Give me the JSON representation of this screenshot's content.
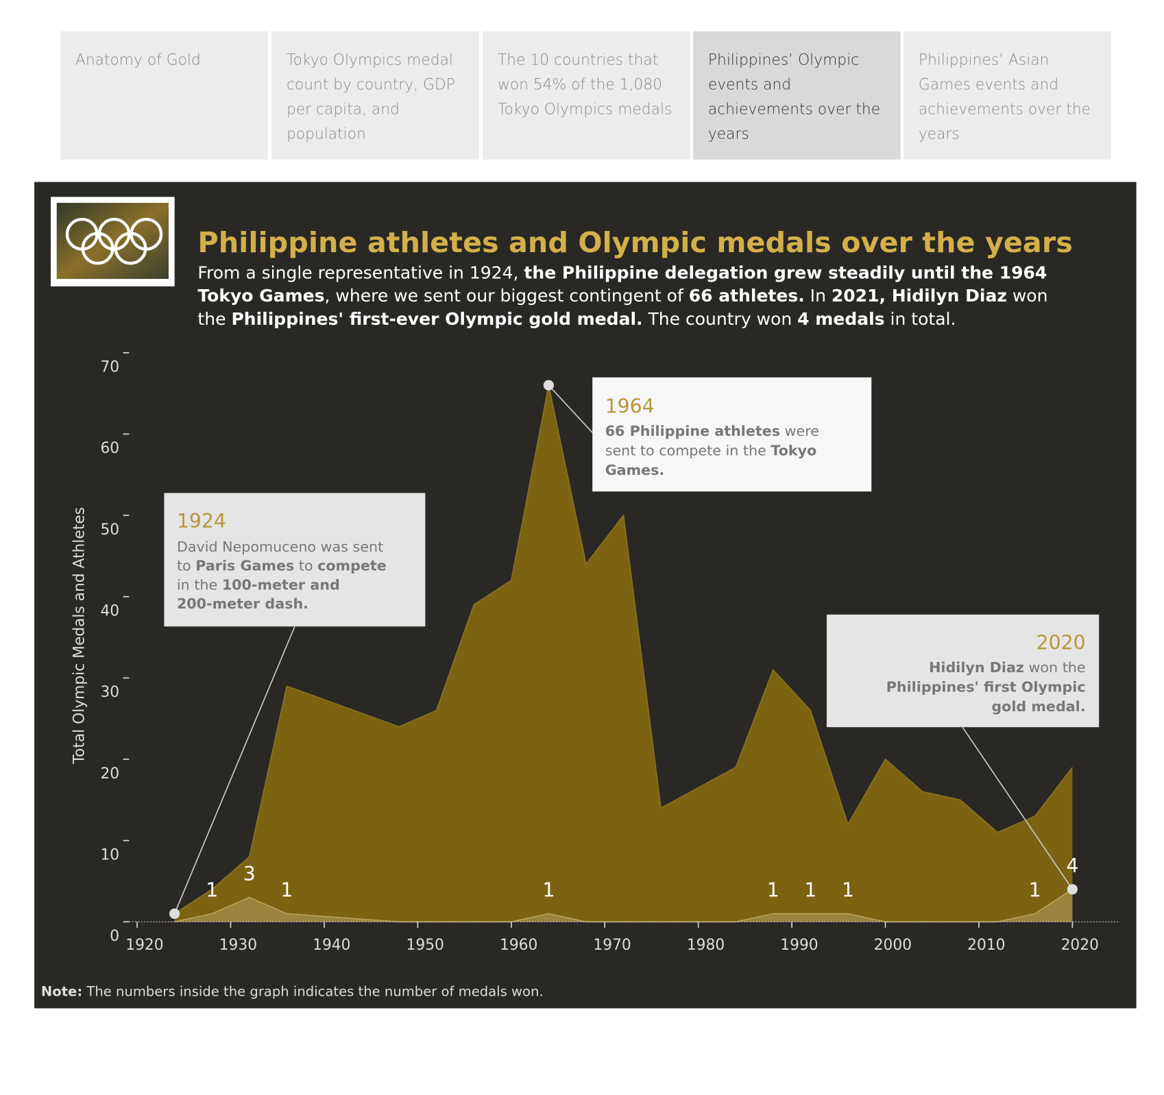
{
  "tabs": [
    "Anatomy of Gold",
    "Tokyo Olympics medal count by country, GDP per capita, and population",
    "The 10 countries that won 54% of the 1,080 Tokyo Olympics medals",
    "Philippines’ Olympic events and achievements over the years",
    "Philippines’ Asian Games events and achievements over the years"
  ],
  "active_tab": 3,
  "chart_data": {
    "type": "area",
    "title": "Philippine athletes and Olympic medals over the years",
    "subtitle": [
      [
        "From a single representative in 1924, ",
        "the Philippine delegation grew steadily until the 1964"
      ],
      [
        "Tokyo Games",
        ", where we sent our biggest contingent of ",
        "66 athletes.",
        " In ",
        "2021, Hidilyn Diaz",
        " won"
      ],
      [
        "the ",
        "Philippines' first-ever Olympic gold medal.",
        " The country won ",
        "4 medals",
        " in total."
      ]
    ],
    "y_label": "Total Olympic Medals and Athletes",
    "x": [
      1924,
      1928,
      1932,
      1936,
      1948,
      1952,
      1956,
      1960,
      1964,
      1968,
      1972,
      1976,
      1984,
      1988,
      1992,
      1996,
      2000,
      2004,
      2008,
      2012,
      2016,
      2020
    ],
    "series": [
      {
        "color": "#7b6311",
        "values": [
          1,
          4,
          8,
          29,
          24,
          26,
          39,
          42,
          66,
          44,
          50,
          14,
          19,
          31,
          26,
          12,
          20,
          16,
          15,
          11,
          13,
          19
        ]
      },
      {
        "color": "#9e8a45",
        "values": [
          0,
          1,
          3,
          1,
          0,
          0,
          0,
          0,
          1,
          0,
          0,
          0,
          0,
          1,
          1,
          1,
          0,
          0,
          0,
          0,
          1,
          4
        ]
      }
    ],
    "xlim": [
      1918.5,
      2025
    ],
    "xticks": [
      1920,
      1930,
      1940,
      1950,
      1960,
      1970,
      1980,
      1990,
      2000,
      2010,
      2020
    ],
    "ylim": [
      0,
      70
    ],
    "yticks": [
      0,
      10,
      20,
      30,
      40,
      50,
      60,
      70
    ],
    "annotations": [
      {
        "title": "1924",
        "lines": [
          [
            "David Nepomuceno was sent"
          ],
          [
            "to ",
            "Paris Games",
            " to ",
            "compete"
          ],
          [
            "in the ",
            "100-meter and"
          ],
          [
            "200-meter dash."
          ]
        ]
      },
      {
        "title": "1964",
        "lines": [
          [
            "66 Philippine athletes",
            " were"
          ],
          [
            "sent to compete in the ",
            "Tokyo"
          ],
          [
            "Games."
          ]
        ]
      },
      {
        "title": "2020",
        "lines": [
          [
            "Hidilyn Diaz",
            " won the"
          ],
          [
            "Philippines' first Olympic"
          ],
          [
            "gold medal."
          ]
        ]
      }
    ],
    "note": [
      "Note:",
      " The numbers inside the graph indicates the number of medals won."
    ]
  }
}
